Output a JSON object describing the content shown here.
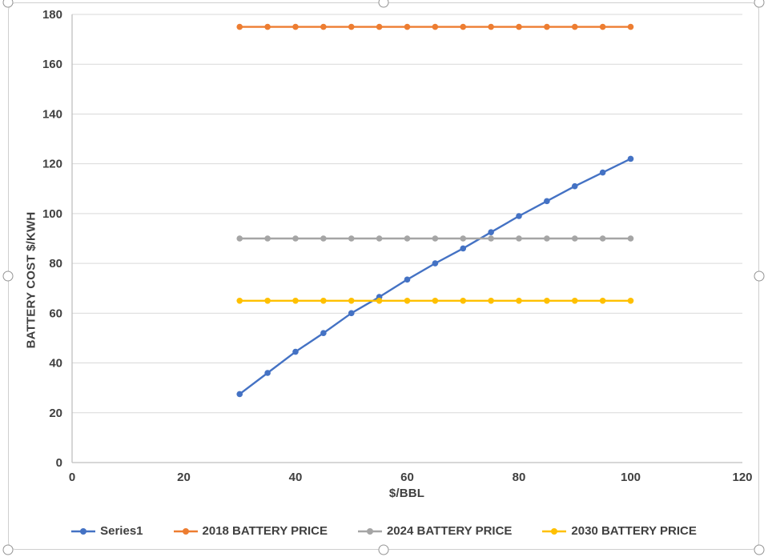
{
  "chart_data": {
    "type": "line",
    "title": "",
    "xlabel": "$/BBL",
    "ylabel": "BATTERY COST $/KWH",
    "xlim": [
      0,
      120
    ],
    "ylim": [
      0,
      180
    ],
    "x_ticks": [
      0,
      20,
      40,
      60,
      80,
      100,
      120
    ],
    "y_ticks": [
      0,
      20,
      40,
      60,
      80,
      100,
      120,
      140,
      160,
      180
    ],
    "grid": "horizontal",
    "legend_position": "bottom",
    "x": [
      30,
      35,
      40,
      45,
      50,
      55,
      60,
      65,
      70,
      75,
      80,
      85,
      90,
      95,
      100
    ],
    "series": [
      {
        "name": "Series1",
        "color": "#4472C4",
        "values": [
          27.5,
          36,
          44.5,
          52,
          60,
          66.5,
          73.5,
          80,
          86,
          92.5,
          99,
          105,
          111,
          116.5,
          122
        ]
      },
      {
        "name": "2018 BATTERY PRICE",
        "color": "#ED7D31",
        "values": [
          175,
          175,
          175,
          175,
          175,
          175,
          175,
          175,
          175,
          175,
          175,
          175,
          175,
          175,
          175
        ]
      },
      {
        "name": "2024 BATTERY PRICE",
        "color": "#A5A5A5",
        "values": [
          90,
          90,
          90,
          90,
          90,
          90,
          90,
          90,
          90,
          90,
          90,
          90,
          90,
          90,
          90
        ]
      },
      {
        "name": "2030 BATTERY PRICE",
        "color": "#FFC000",
        "values": [
          65,
          65,
          65,
          65,
          65,
          65,
          65,
          65,
          65,
          65,
          65,
          65,
          65,
          65,
          65
        ]
      }
    ]
  },
  "colors": {
    "axis_text": "#404040",
    "gridline": "#D9D9D9",
    "axis_line": "#BFBFBF",
    "chart_border": "#CFCFCF",
    "handle_border": "#949494",
    "background": "#FFFFFF"
  }
}
